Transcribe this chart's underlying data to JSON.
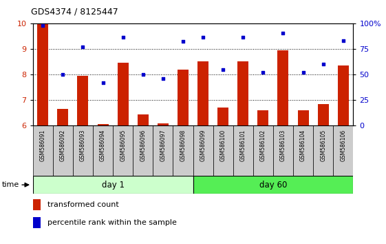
{
  "title": "GDS4374 / 8125447",
  "samples": [
    "GSM586091",
    "GSM586092",
    "GSM586093",
    "GSM586094",
    "GSM586095",
    "GSM586096",
    "GSM586097",
    "GSM586098",
    "GSM586099",
    "GSM586100",
    "GSM586101",
    "GSM586102",
    "GSM586103",
    "GSM586104",
    "GSM586105",
    "GSM586106"
  ],
  "red_values": [
    9.95,
    6.65,
    7.95,
    6.05,
    8.45,
    6.45,
    6.1,
    8.2,
    8.5,
    6.7,
    8.5,
    6.6,
    8.95,
    6.6,
    6.85,
    8.35
  ],
  "blue_values": [
    98,
    50,
    77,
    42,
    86,
    50,
    46,
    82,
    86,
    55,
    86,
    52,
    90,
    52,
    60,
    83
  ],
  "day1_count": 8,
  "day60_count": 8,
  "ylim_left": [
    6,
    10
  ],
  "ylim_right": [
    0,
    100
  ],
  "yticks_left": [
    6,
    7,
    8,
    9,
    10
  ],
  "yticks_right": [
    0,
    25,
    50,
    75,
    100
  ],
  "ytick_labels_right": [
    "0",
    "25",
    "50",
    "75",
    "100%"
  ],
  "bar_color": "#cc2200",
  "dot_color": "#0000cc",
  "day1_color": "#ccffcc",
  "day60_color": "#55ee55",
  "tick_bg_color": "#cccccc",
  "legend_red_label": "transformed count",
  "legend_blue_label": "percentile rank within the sample",
  "time_label": "time",
  "day1_label": "day 1",
  "day60_label": "day 60",
  "fig_width": 5.61,
  "fig_height": 3.54,
  "dpi": 100
}
